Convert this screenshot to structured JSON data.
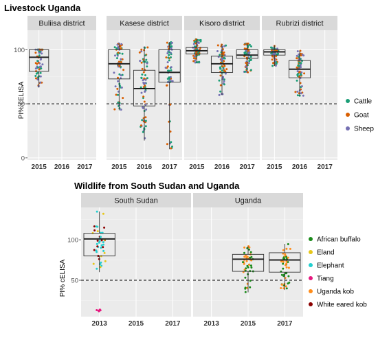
{
  "chart_data": [
    {
      "type": "boxplot-jitter",
      "title": "Livestock Uganda",
      "ylabel": "PI% cELISA",
      "ylim": [
        -2,
        118
      ],
      "yticks": [
        0,
        50,
        100
      ],
      "threshold": 50,
      "categories": [
        "2015",
        "2016",
        "2017"
      ],
      "legend": [
        "Cattle",
        "Goat",
        "Sheep"
      ],
      "colors": {
        "Cattle": "#1b9e77",
        "Goat": "#d95f02",
        "Sheep": "#7570b3"
      },
      "panels": [
        {
          "name": "Buliisa district",
          "boxes": [
            {
              "year": "2015",
              "q1": 80,
              "median": 93,
              "q3": 100,
              "lo": 65,
              "hi": 100
            }
          ]
        },
        {
          "name": "Kasese district",
          "boxes": [
            {
              "year": "2015",
              "q1": 73,
              "median": 87,
              "q3": 100,
              "lo": 44,
              "hi": 106
            },
            {
              "year": "2016",
              "q1": 48,
              "median": 64,
              "q3": 81,
              "lo": 16,
              "hi": 103
            },
            {
              "year": "2017",
              "q1": 70,
              "median": 79,
              "q3": 100,
              "lo": 8,
              "hi": 107
            }
          ]
        },
        {
          "name": "Kisoro district",
          "boxes": [
            {
              "year": "2015",
              "q1": 96,
              "median": 99,
              "q3": 102,
              "lo": 88,
              "hi": 110
            },
            {
              "year": "2016",
              "q1": 79,
              "median": 87,
              "q3": 94,
              "lo": 58,
              "hi": 105
            },
            {
              "year": "2017",
              "q1": 92,
              "median": 95,
              "q3": 100,
              "lo": 79,
              "hi": 106
            }
          ]
        },
        {
          "name": "Rubrizi district",
          "boxes": [
            {
              "year": "2015",
              "q1": 95,
              "median": 98,
              "q3": 100,
              "lo": 85,
              "hi": 104
            },
            {
              "year": "2016",
              "q1": 74,
              "median": 82,
              "q3": 90,
              "lo": 57,
              "hi": 99
            }
          ]
        }
      ]
    },
    {
      "type": "boxplot-jitter",
      "title": "Wildlife from South Sudan and Uganda",
      "ylabel": "PI% cELISA",
      "ylim": [
        5,
        140
      ],
      "yticks": [
        50,
        100
      ],
      "threshold": 50,
      "categories": [
        "2013",
        "2015",
        "2017"
      ],
      "legend": [
        "African buffalo",
        "Eland",
        "Elephant",
        "Tiang",
        "Uganda kob",
        "White eared kob"
      ],
      "colors": {
        "African buffalo": "#1a8a1a",
        "Eland": "#e6c619",
        "Elephant": "#22cfcf",
        "Tiang": "#e6197f",
        "Uganda kob": "#ff8c1a",
        "White eared kob": "#8b0000"
      },
      "panels": [
        {
          "name": "South Sudan",
          "boxes": [
            {
              "year": "2013",
              "q1": 80,
              "median": 101,
              "q3": 108,
              "lo": 60,
              "hi": 135
            }
          ]
        },
        {
          "name": "Uganda",
          "boxes": [
            {
              "year": "2015",
              "q1": 61,
              "median": 76,
              "q3": 82,
              "lo": 35,
              "hi": 92
            },
            {
              "year": "2017",
              "q1": 60,
              "median": 75,
              "q3": 84,
              "lo": 38,
              "hi": 95
            }
          ]
        }
      ]
    }
  ]
}
